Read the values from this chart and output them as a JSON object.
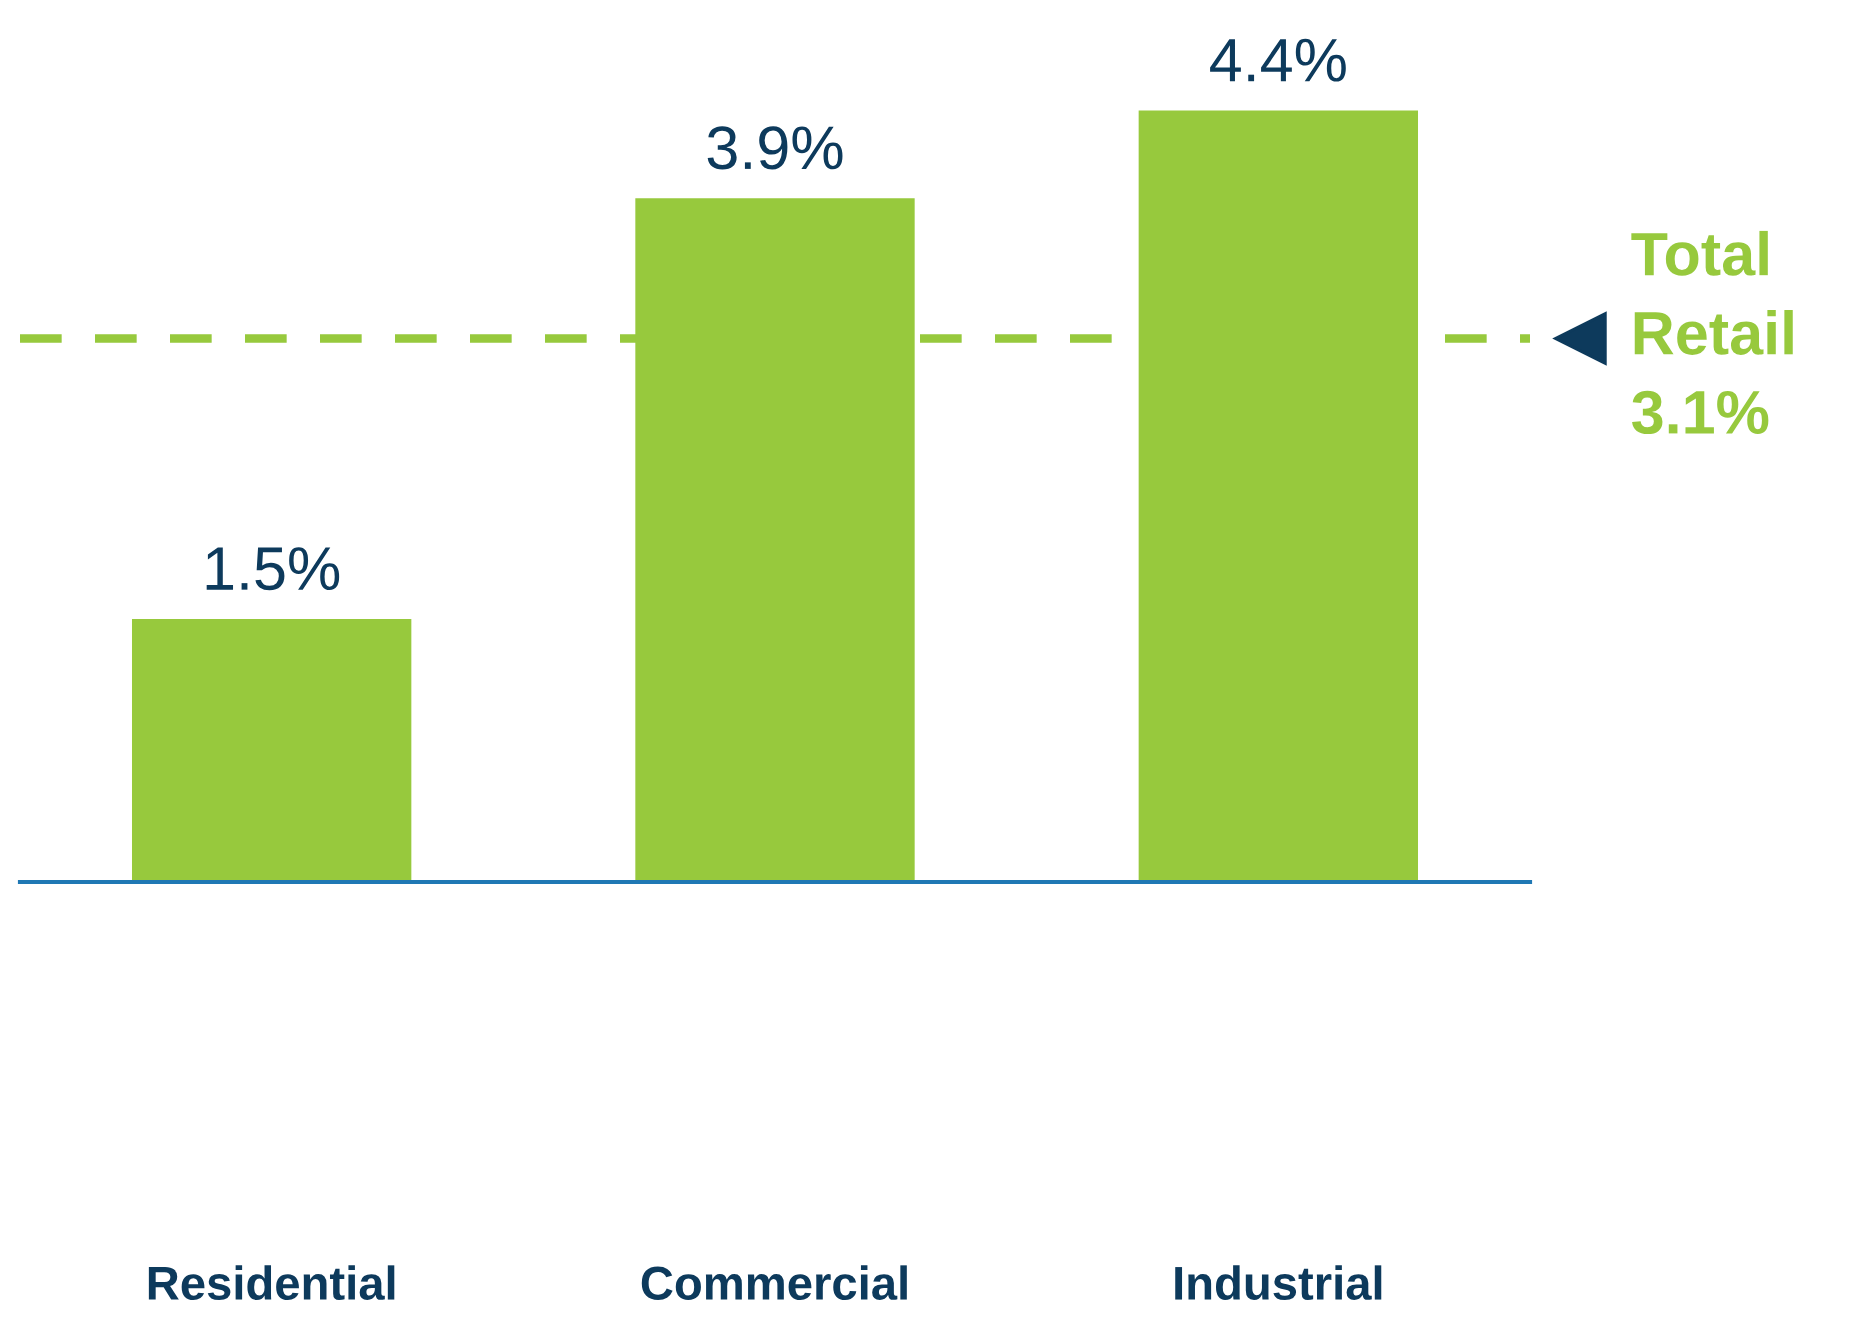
{
  "chart_data": {
    "type": "bar",
    "categories": [
      "Residential",
      "Commercial",
      "Industrial"
    ],
    "values": [
      1.5,
      3.9,
      4.4
    ],
    "value_labels": [
      "1.5%",
      "3.9%",
      "4.4%"
    ],
    "color": "#97c93d",
    "grid": false,
    "legend": false,
    "ref_lines": [
      {
        "axis": "y",
        "value": 3.1,
        "label": "Total\nRetail\n3.1%",
        "color": "#97c93d",
        "line_style": "dashed"
      }
    ]
  }
}
